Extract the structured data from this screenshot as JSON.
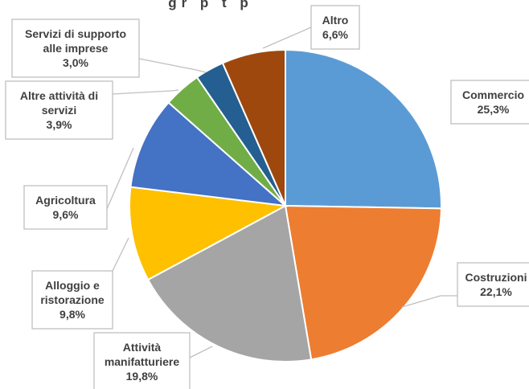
{
  "title_fragment": "gr p t p",
  "chart_data": {
    "type": "pie",
    "categories": [
      "Commercio",
      "Costruzioni",
      "Attività manifatturiere",
      "Alloggio e ristorazione",
      "Agricoltura",
      "Altre attività di servizi",
      "Servizi di supporto alle imprese",
      "Altro"
    ],
    "values": [
      25.3,
      22.1,
      19.8,
      9.8,
      9.6,
      3.9,
      3.0,
      6.6
    ],
    "value_labels": [
      "25,3%",
      "22,1%",
      "19,8%",
      "9,8%",
      "9,6%",
      "3,9%",
      "3,0%",
      "6,6%"
    ],
    "label_lines": [
      [
        "Commercio",
        "25,3%"
      ],
      [
        "Costruzioni",
        "22,1%"
      ],
      [
        "Attività",
        "manifatturiere",
        "19,8%"
      ],
      [
        "Alloggio e",
        "ristorazione",
        "9,8%"
      ],
      [
        "Agricoltura",
        "9,6%"
      ],
      [
        "Altre attività di",
        "servizi",
        "3,9%"
      ],
      [
        "Servizi di supporto",
        "alle imprese",
        "3,0%"
      ],
      [
        "Altro",
        "6,6%"
      ]
    ],
    "colors": [
      "#5b9bd5",
      "#ed7d31",
      "#a5a5a5",
      "#ffc000",
      "#4472c4",
      "#70ad47",
      "#255e91",
      "#9e480e"
    ],
    "start": "12 o'clock",
    "direction": "clockwise",
    "legend": "none"
  }
}
